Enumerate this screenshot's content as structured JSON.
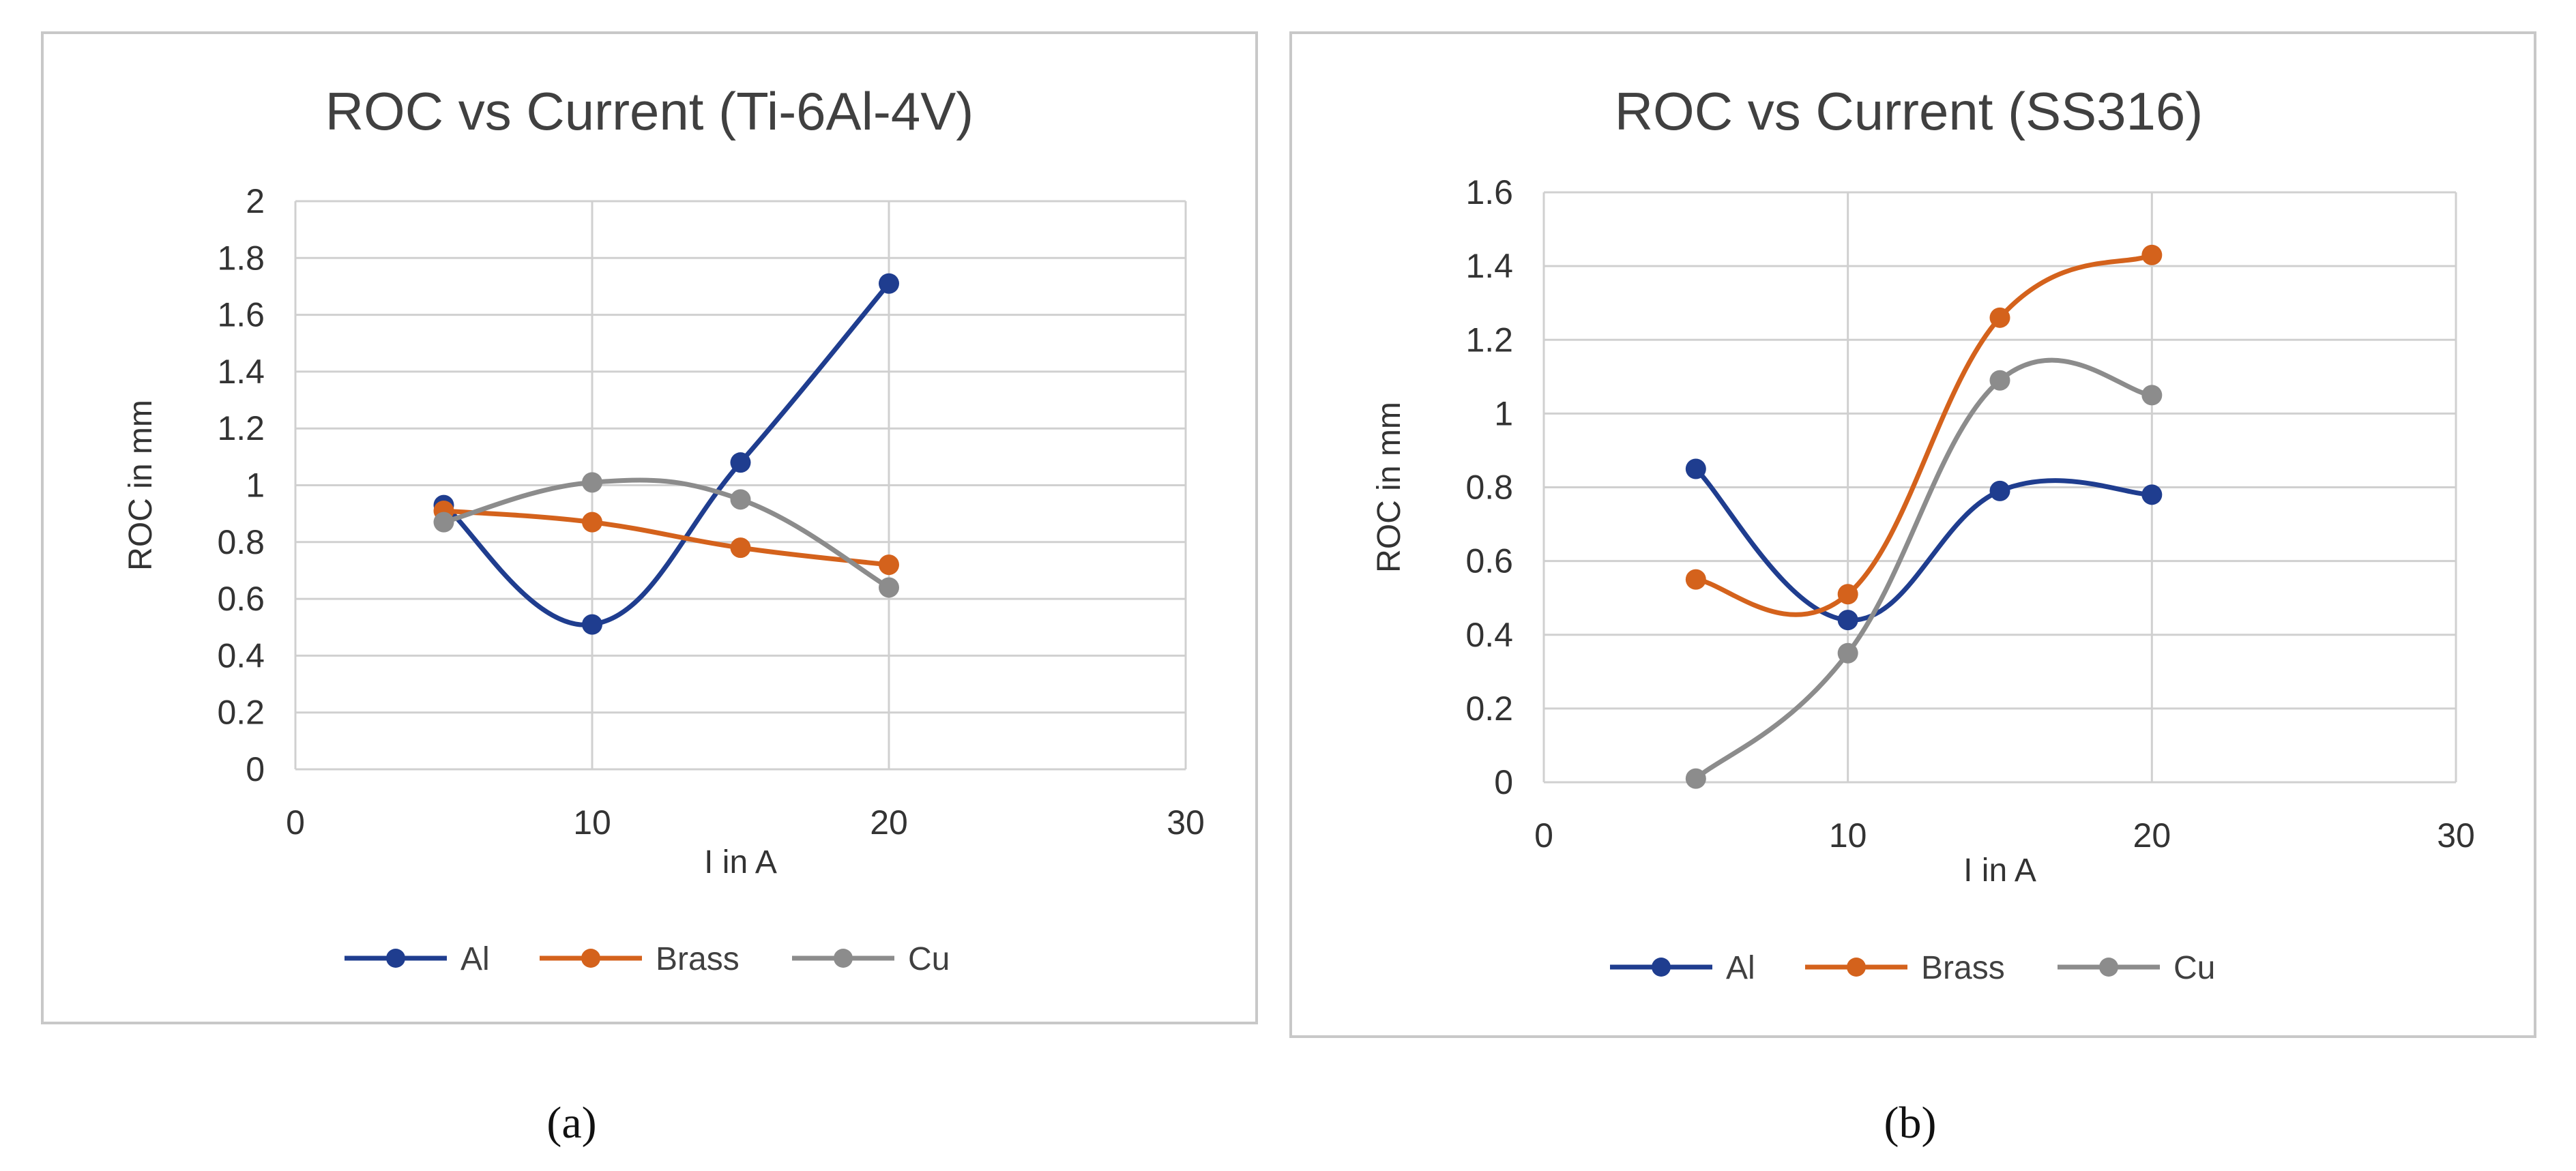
{
  "colors": {
    "Al": "#1f3d8f",
    "Brass": "#d4621c",
    "Cu": "#8c8c8c"
  },
  "captions": [
    "(a)",
    "(b)"
  ],
  "chart_data": [
    {
      "type": "line",
      "title": "ROC vs Current (Ti-6Al-4V)",
      "xlabel": "I in A",
      "ylabel": "ROC in mm",
      "xlim": [
        0,
        30
      ],
      "ylim": [
        0,
        2
      ],
      "xticks": [
        0,
        10,
        20,
        30
      ],
      "yticks": [
        0,
        0.2,
        0.4,
        0.6,
        0.8,
        1,
        1.2,
        1.4,
        1.6,
        1.8,
        2
      ],
      "grid": true,
      "legend": "bottom",
      "smooth": true,
      "x": [
        5,
        10,
        15,
        20
      ],
      "series": [
        {
          "name": "Al",
          "values": [
            0.93,
            0.51,
            1.08,
            1.71
          ]
        },
        {
          "name": "Brass",
          "values": [
            0.91,
            0.87,
            0.78,
            0.72
          ]
        },
        {
          "name": "Cu",
          "values": [
            0.87,
            1.01,
            0.95,
            0.64
          ]
        }
      ]
    },
    {
      "type": "line",
      "title": "ROC vs Current (SS316)",
      "xlabel": "I in A",
      "ylabel": "ROC in mm",
      "xlim": [
        0,
        30
      ],
      "ylim": [
        0,
        1.6
      ],
      "xticks": [
        0,
        10,
        20,
        30
      ],
      "yticks": [
        0,
        0.2,
        0.4,
        0.6,
        0.8,
        1,
        1.2,
        1.4,
        1.6
      ],
      "grid": true,
      "legend": "bottom",
      "smooth": true,
      "x": [
        5,
        10,
        15,
        20
      ],
      "series": [
        {
          "name": "Al",
          "values": [
            0.85,
            0.44,
            0.79,
            0.78
          ]
        },
        {
          "name": "Brass",
          "values": [
            0.55,
            0.51,
            1.26,
            1.43
          ]
        },
        {
          "name": "Cu",
          "values": [
            0.01,
            0.35,
            1.09,
            1.05
          ]
        }
      ]
    }
  ]
}
